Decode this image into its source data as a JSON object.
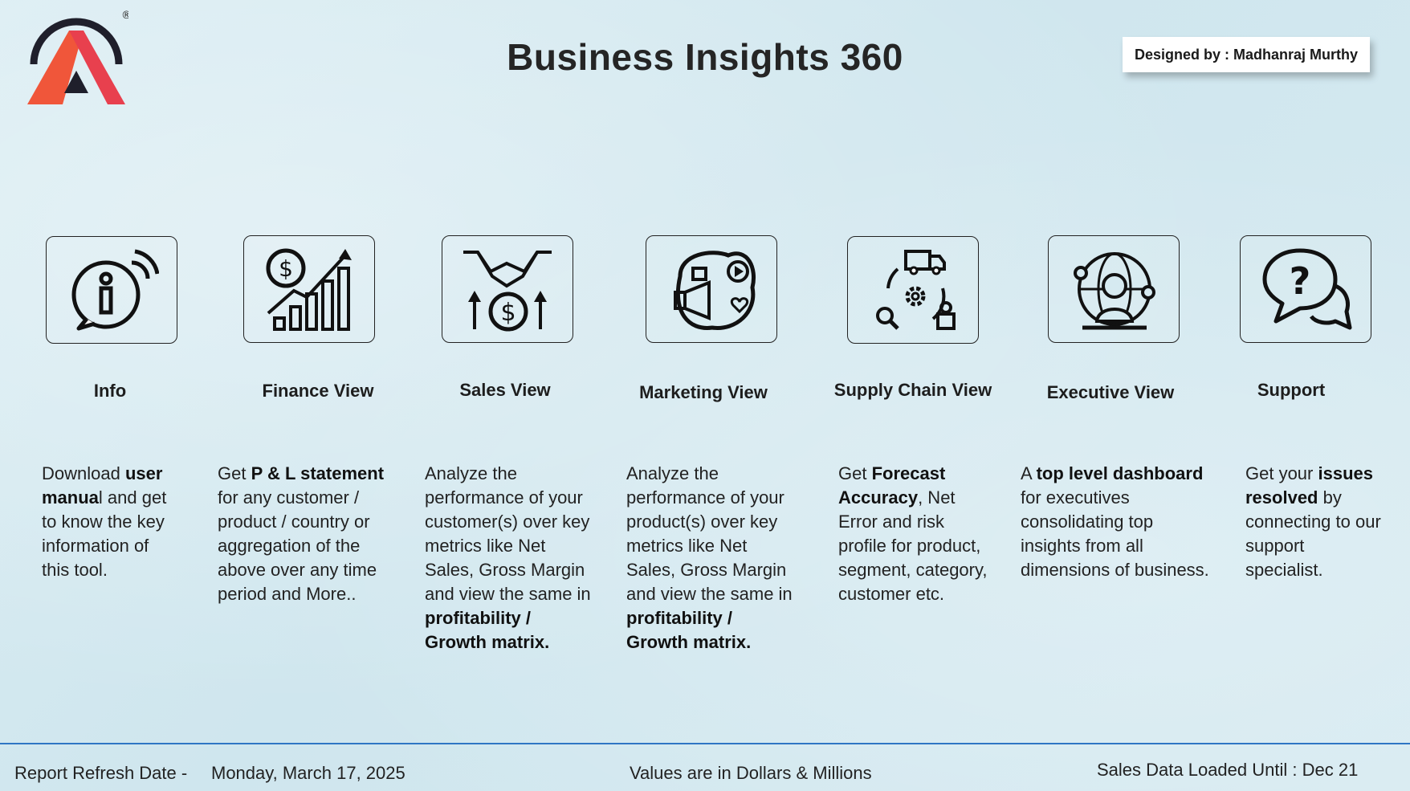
{
  "header": {
    "title": "Business Insights 360",
    "designer": "Designed by : Madhanraj Murthy",
    "logo_mark": "®",
    "accent_orange": "#f0563a",
    "accent_dark": "#1f1f2b"
  },
  "nav": [
    {
      "label": "Info",
      "icon": "info-icon",
      "desc": [
        {
          "t": "Download "
        },
        {
          "t": "user manua",
          "b": true
        },
        {
          "t": "l and get to know the key information of this tool."
        }
      ]
    },
    {
      "label": "Finance View",
      "icon": "finance-chart-icon",
      "desc": [
        {
          "t": "Get  "
        },
        {
          "t": "P & L statement",
          "b": true
        },
        {
          "t": " for any customer / product / country or aggregation of the above over any time period and More.."
        }
      ]
    },
    {
      "label": "Sales View",
      "icon": "handshake-dollar-icon",
      "desc": [
        {
          "t": "Analyze the performance of your customer(s) over key metrics like Net Sales, Gross Margin and view the same in "
        },
        {
          "t": "profitability / Growth matrix.",
          "b": true
        }
      ]
    },
    {
      "label": "Marketing View",
      "icon": "megaphone-icon",
      "desc": [
        {
          "t": "Analyze the performance of your product(s) over key metrics like Net Sales, Gross Margin and view the same in "
        },
        {
          "t": "profitability / Growth matrix.",
          "b": true
        }
      ]
    },
    {
      "label": "Supply Chain View",
      "icon": "supply-chain-icon",
      "desc": [
        {
          "t": "Get "
        },
        {
          "t": "Forecast Accuracy",
          "b": true
        },
        {
          "t": ", Net Error and risk profile for product, segment, category, customer etc."
        }
      ]
    },
    {
      "label": "Executive View",
      "icon": "executive-globe-icon",
      "desc": [
        {
          "t": "A "
        },
        {
          "t": "top level dashboard",
          "b": true
        },
        {
          "t": " for executives consolidating top insights from all dimensions of business."
        }
      ]
    },
    {
      "label": "Support",
      "icon": "support-chat-icon",
      "desc": [
        {
          "t": "Get your "
        },
        {
          "t": "issues resolved",
          "b": true
        },
        {
          "t": " by connecting to our support specialist."
        }
      ]
    }
  ],
  "footer": {
    "refresh_label": "Report Refresh Date -",
    "refresh_date": "Monday, March 17, 2025",
    "units_note": "Values are in Dollars & Millions",
    "sales_loaded": "Sales Data Loaded Until : Dec 21",
    "rule_color": "#2f76c4"
  }
}
